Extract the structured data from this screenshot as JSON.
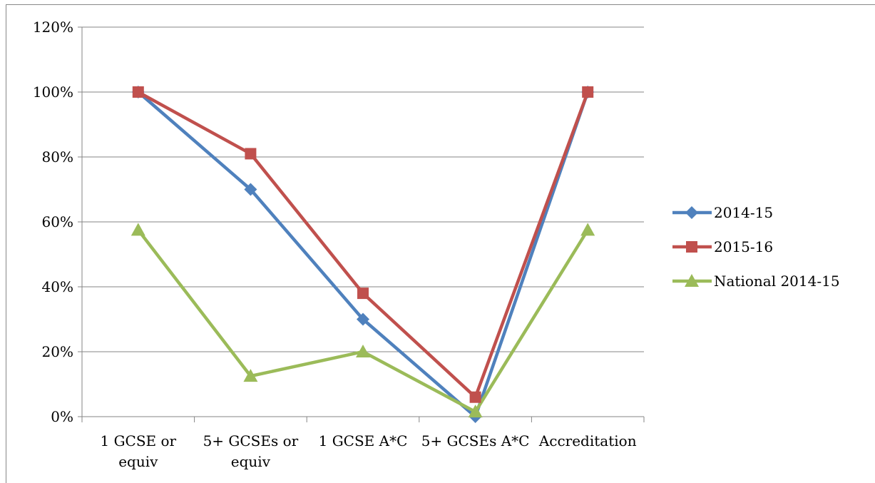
{
  "chart_data": {
    "type": "line",
    "categories": [
      [
        "1 GCSE or",
        "equiv"
      ],
      [
        "5+ GCSEs or",
        "equiv"
      ],
      [
        "1 GCSE A*C"
      ],
      [
        "5+ GCSEs A*C"
      ],
      [
        "Accreditation"
      ]
    ],
    "y_ticks": [
      "0%",
      "20%",
      "40%",
      "60%",
      "80%",
      "100%",
      "120%"
    ],
    "ylim": [
      0,
      120
    ],
    "grid": true,
    "legend_position": "right",
    "series": [
      {
        "name": "2014-15",
        "values": [
          100,
          70,
          30,
          0,
          100
        ],
        "color": "#4F81BD",
        "marker": "diamond"
      },
      {
        "name": "2015-16",
        "values": [
          100,
          81,
          38,
          6,
          100
        ],
        "color": "#C0504D",
        "marker": "square"
      },
      {
        "name": "National 2014-15",
        "values": [
          57.5,
          12.5,
          20,
          1.5,
          57.5
        ],
        "color": "#9BBB59",
        "marker": "triangle"
      }
    ]
  }
}
